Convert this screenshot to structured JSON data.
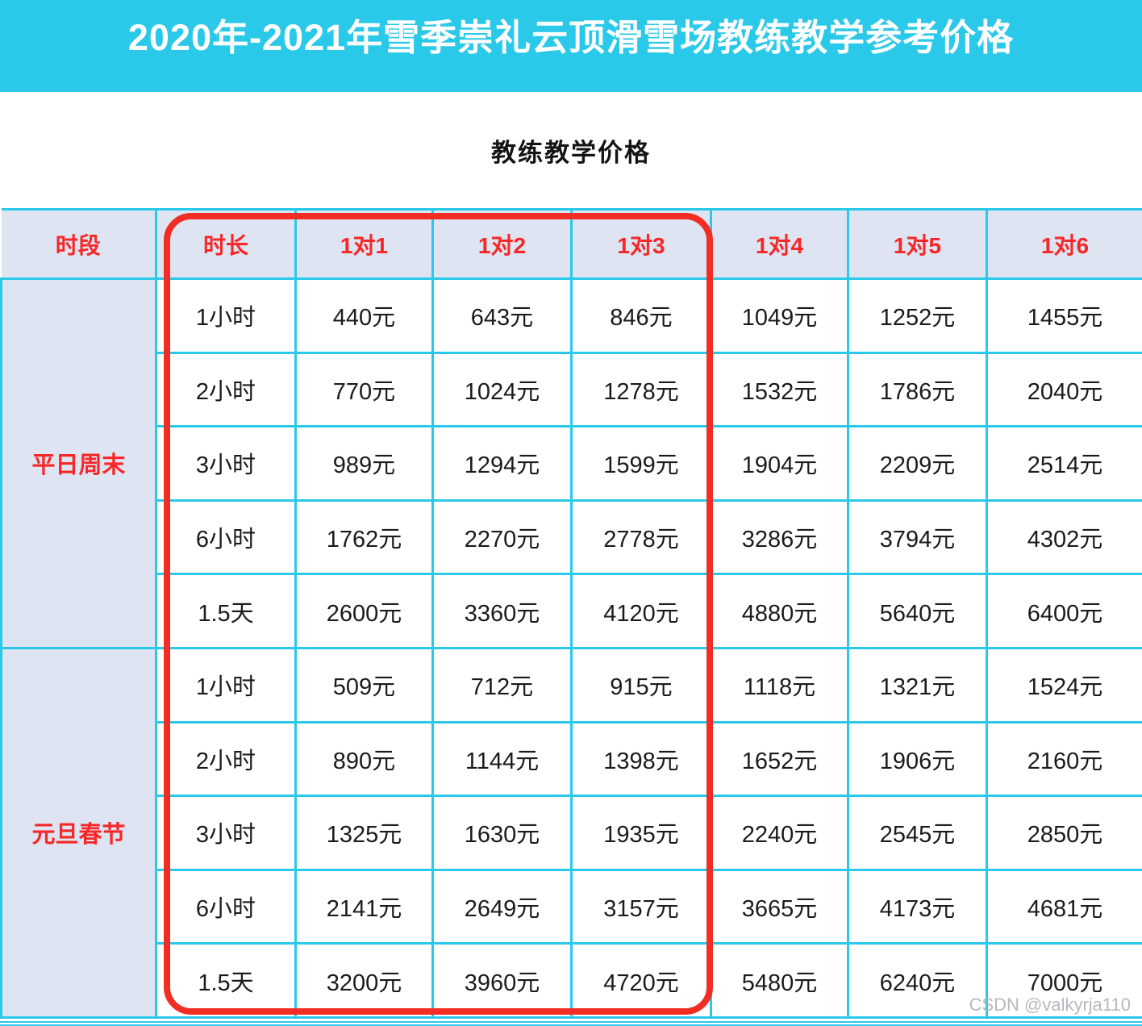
{
  "title": "2020年-2021年雪季崇礼云顶滑雪场教练教学参考价格",
  "subtitle": "教练教学价格",
  "watermark": "CSDN @valkyrja110",
  "colors": {
    "cyan": "#2bc9e9",
    "header_bg": "#dee4f2",
    "red_text": "#f72727",
    "box_red": "#f22d23",
    "body_text": "#1b1b1b",
    "watermark_gray": "#a8adb3"
  },
  "chart_data": {
    "type": "table",
    "title": "教练教学价格",
    "unit": "元",
    "period_header": "时段",
    "duration_header": "时长",
    "price_headers": [
      "1对1",
      "1对2",
      "1对3",
      "1对4",
      "1对5",
      "1对6"
    ],
    "highlighted_columns": [
      "时长",
      "1对1",
      "1对2",
      "1对3"
    ],
    "sections": [
      {
        "period": "平日周末",
        "rows": [
          {
            "duration": "1小时",
            "prices": [
              "440元",
              "643元",
              "846元",
              "1049元",
              "1252元",
              "1455元"
            ]
          },
          {
            "duration": "2小时",
            "prices": [
              "770元",
              "1024元",
              "1278元",
              "1532元",
              "1786元",
              "2040元"
            ]
          },
          {
            "duration": "3小时",
            "prices": [
              "989元",
              "1294元",
              "1599元",
              "1904元",
              "2209元",
              "2514元"
            ]
          },
          {
            "duration": "6小时",
            "prices": [
              "1762元",
              "2270元",
              "2778元",
              "3286元",
              "3794元",
              "4302元"
            ]
          },
          {
            "duration": "1.5天",
            "prices": [
              "2600元",
              "3360元",
              "4120元",
              "4880元",
              "5640元",
              "6400元"
            ]
          }
        ]
      },
      {
        "period": "元旦春节",
        "rows": [
          {
            "duration": "1小时",
            "prices": [
              "509元",
              "712元",
              "915元",
              "1118元",
              "1321元",
              "1524元"
            ]
          },
          {
            "duration": "2小时",
            "prices": [
              "890元",
              "1144元",
              "1398元",
              "1652元",
              "1906元",
              "2160元"
            ]
          },
          {
            "duration": "3小时",
            "prices": [
              "1325元",
              "1630元",
              "1935元",
              "2240元",
              "2545元",
              "2850元"
            ]
          },
          {
            "duration": "6小时",
            "prices": [
              "2141元",
              "2649元",
              "3157元",
              "3665元",
              "4173元",
              "4681元"
            ]
          },
          {
            "duration": "1.5天",
            "prices": [
              "3200元",
              "3960元",
              "4720元",
              "5480元",
              "6240元",
              "7000元"
            ]
          }
        ]
      }
    ]
  }
}
